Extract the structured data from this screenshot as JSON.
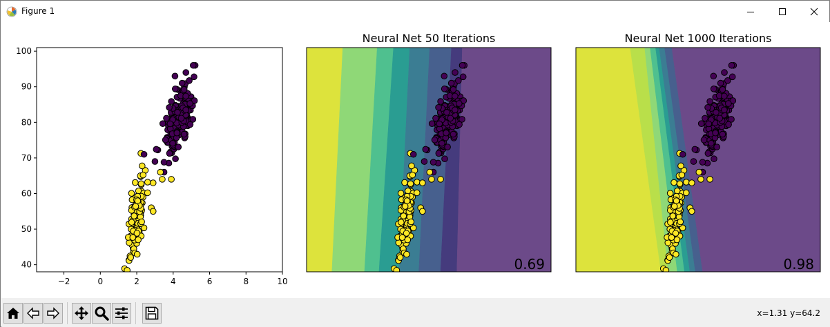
{
  "window": {
    "title": "Figure 1"
  },
  "toolbar": {
    "buttons": [
      {
        "name": "home-button",
        "icon": "home-icon"
      },
      {
        "name": "back-button",
        "icon": "back-arrow-icon"
      },
      {
        "name": "forward-button",
        "icon": "forward-arrow-icon"
      },
      {
        "name": "pan-button",
        "icon": "move-arrows-icon"
      },
      {
        "name": "zoom-button",
        "icon": "magnifier-icon"
      },
      {
        "name": "configure-subplots-button",
        "icon": "sliders-icon"
      },
      {
        "name": "save-button",
        "icon": "floppy-disk-icon"
      }
    ],
    "coords": "x=1.31 y=64.2"
  },
  "chart_data": [
    {
      "type": "scatter",
      "title": "",
      "xlim": [
        -3.5,
        10
      ],
      "ylim": [
        38,
        101
      ],
      "xticks": [
        "−2",
        "0",
        "2",
        "4",
        "6",
        "8",
        "10"
      ],
      "yticks": [
        "40",
        "50",
        "60",
        "70",
        "80",
        "90",
        "100"
      ],
      "series": [
        {
          "class": 0,
          "color": "#440154",
          "center": [
            4.3,
            81
          ],
          "spread": [
            0.38,
            4.6
          ],
          "count": 200
        },
        {
          "class": 1,
          "color": "#fde725",
          "center": [
            2.0,
            54
          ],
          "spread": [
            0.22,
            5.6
          ],
          "count": 120
        }
      ],
      "extra_points": [
        {
          "x": 2.4,
          "y": 71,
          "class": 0
        },
        {
          "x": 3.0,
          "y": 69,
          "class": 0
        },
        {
          "x": 3.5,
          "y": 66,
          "class": 0
        },
        {
          "x": 3.3,
          "y": 66,
          "class": 1
        },
        {
          "x": 3.9,
          "y": 64,
          "class": 1
        },
        {
          "x": 3.4,
          "y": 64,
          "class": 1
        },
        {
          "x": 2.9,
          "y": 63,
          "class": 1
        },
        {
          "x": 2.8,
          "y": 56,
          "class": 1
        },
        {
          "x": 2.9,
          "y": 55,
          "class": 1
        },
        {
          "x": 5.1,
          "y": 96,
          "class": 0
        },
        {
          "x": 4.7,
          "y": 94,
          "class": 0
        },
        {
          "x": 4.1,
          "y": 93,
          "class": 0
        }
      ]
    },
    {
      "type": "scatter",
      "title": "Neural Net 50 Iterations",
      "score": "0.69",
      "background": "decision-contour",
      "contour_colors": [
        "#dde33c",
        "#8fd877",
        "#4fc08f",
        "#2a9d92",
        "#3b7d93",
        "#47608e",
        "#453b7d",
        "#6c4a89"
      ],
      "xlim": [
        -3.5,
        10
      ],
      "ylim": [
        38,
        101
      ]
    },
    {
      "type": "scatter",
      "title": "Neural Net 1000 Iterations",
      "score": "0.98",
      "background": "decision-contour",
      "contour_colors": [
        "#dde33c",
        "#b9df4a",
        "#8fd877",
        "#4fc08f",
        "#2a9d92",
        "#3b7d93",
        "#47608e",
        "#6c4a89"
      ],
      "xlim": [
        -3.5,
        10
      ],
      "ylim": [
        38,
        101
      ]
    }
  ]
}
